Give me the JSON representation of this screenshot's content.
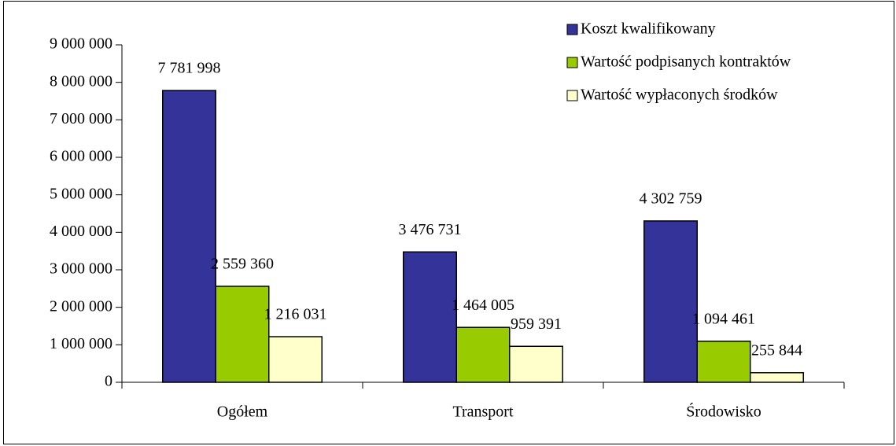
{
  "chart_data": {
    "type": "bar",
    "categories": [
      "Ogółem",
      "Transport",
      "Środowisko"
    ],
    "series": [
      {
        "name": "Koszt kwalifikowany",
        "color": "#333399",
        "values": [
          7781998,
          3476731,
          4302759
        ],
        "value_labels": [
          "7 781 998",
          "3 476 731",
          "4 302 759"
        ]
      },
      {
        "name": "Wartość podpisanych kontraktów",
        "color": "#99cc00",
        "values": [
          2559360,
          1464005,
          1094461
        ],
        "value_labels": [
          "2 559 360",
          "1 464 005",
          "1 094 461"
        ]
      },
      {
        "name": "Wartość wypłaconych środków",
        "color": "#ffffcc",
        "values": [
          1216031,
          959391,
          255844
        ],
        "value_labels": [
          "1 216 031",
          "959 391",
          "255 844"
        ]
      }
    ],
    "ylim": [
      0,
      9000000
    ],
    "yticks": [
      {
        "value": 0,
        "label": "0"
      },
      {
        "value": 1000000,
        "label": "1 000 000"
      },
      {
        "value": 2000000,
        "label": "2 000 000"
      },
      {
        "value": 3000000,
        "label": "3 000 000"
      },
      {
        "value": 4000000,
        "label": "4 000 000"
      },
      {
        "value": 5000000,
        "label": "5 000 000"
      },
      {
        "value": 6000000,
        "label": "6 000 000"
      },
      {
        "value": 7000000,
        "label": "7 000 000"
      },
      {
        "value": 8000000,
        "label": "8 000 000"
      },
      {
        "value": 9000000,
        "label": "9 000 000"
      }
    ],
    "legend": "top-right"
  }
}
